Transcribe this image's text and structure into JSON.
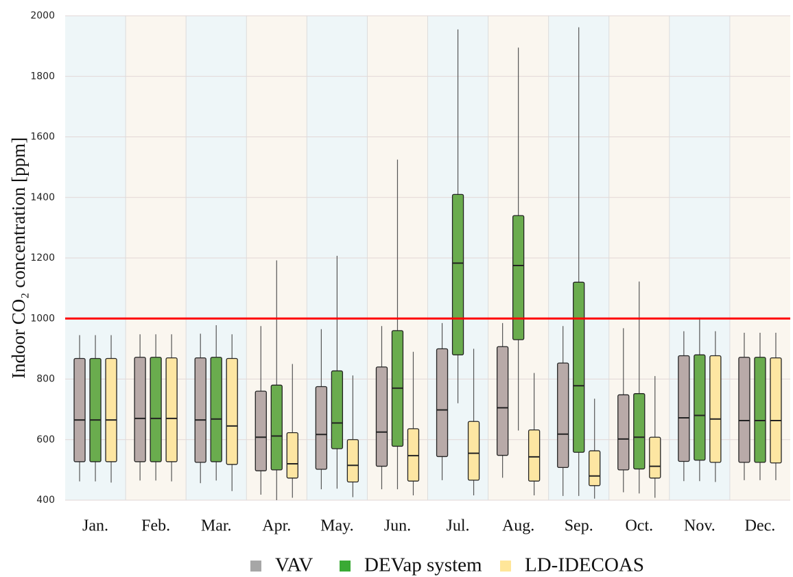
{
  "chart_data": {
    "type": "box",
    "ylabel": "Indoor CO₂ concentration [ppm]",
    "categories": [
      "Jan.",
      "Feb.",
      "Mar.",
      "Apr.",
      "May.",
      "Jun.",
      "Jul.",
      "Aug.",
      "Sep.",
      "Oct.",
      "Nov.",
      "Dec."
    ],
    "ylim": [
      400,
      2000
    ],
    "yticks": [
      400,
      600,
      800,
      1000,
      1200,
      1400,
      1600,
      1800,
      2000
    ],
    "grid": true,
    "threshold": 1000,
    "threshold_color": "#ff0000",
    "band_colors": [
      "#eef6f8",
      "#faf6ef"
    ],
    "series": [
      {
        "name": "VAV",
        "color": "#b8aaa8",
        "legend_color": "#a6a6a6",
        "min": [
          462,
          465,
          456,
          418,
          436,
          436,
          466,
          474,
          414,
          426,
          463,
          466
        ],
        "q1": [
          527,
          527,
          525,
          497,
          502,
          512,
          544,
          548,
          508,
          500,
          528,
          525
        ],
        "median": [
          665,
          670,
          665,
          608,
          617,
          625,
          698,
          705,
          618,
          602,
          672,
          663
        ],
        "q3": [
          868,
          872,
          870,
          760,
          775,
          840,
          900,
          907,
          853,
          748,
          877,
          872
        ],
        "max": [
          945,
          948,
          950,
          975,
          965,
          975,
          985,
          985,
          975,
          968,
          958,
          953
        ]
      },
      {
        "name": "DEVap system",
        "color": "#6aac4e",
        "legend_color": "#3aaa35",
        "min": [
          462,
          465,
          465,
          400,
          438,
          436,
          720,
          630,
          414,
          422,
          463,
          466
        ],
        "q1": [
          527,
          527,
          527,
          500,
          570,
          578,
          880,
          930,
          558,
          503,
          532,
          525
        ],
        "median": [
          665,
          670,
          668,
          612,
          655,
          770,
          1183,
          1175,
          778,
          608,
          680,
          663
        ],
        "q3": [
          868,
          872,
          872,
          780,
          827,
          960,
          1410,
          1340,
          1120,
          752,
          880,
          872
        ],
        "max": [
          945,
          948,
          978,
          1192,
          1207,
          1525,
          1955,
          1895,
          1962,
          1122,
          1003,
          953
        ]
      },
      {
        "name": "LD-IDECOAS",
        "color": "#fde6a2",
        "legend_color": "#ffe699",
        "min": [
          458,
          462,
          430,
          408,
          410,
          416,
          416,
          416,
          405,
          408,
          460,
          466
        ],
        "q1": [
          527,
          527,
          518,
          473,
          460,
          463,
          466,
          463,
          448,
          473,
          525,
          523
        ],
        "median": [
          665,
          670,
          645,
          520,
          515,
          547,
          555,
          543,
          480,
          512,
          668,
          663
        ],
        "q3": [
          868,
          870,
          868,
          623,
          600,
          636,
          660,
          632,
          563,
          608,
          877,
          870
        ],
        "max": [
          945,
          948,
          948,
          850,
          812,
          890,
          900,
          820,
          735,
          810,
          958,
          953
        ]
      }
    ]
  }
}
